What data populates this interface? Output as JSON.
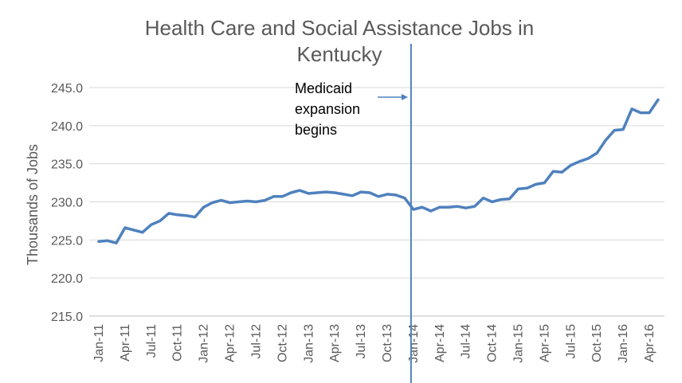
{
  "chart_data": {
    "type": "line",
    "title_line1": "Health Care and Social Assistance Jobs in",
    "title_line2": "Kentucky",
    "xlabel": "",
    "ylabel": "Thousands of Jobs",
    "ylim": [
      215,
      245
    ],
    "ytick_values": [
      215,
      220,
      225,
      230,
      235,
      240,
      245
    ],
    "yticks": [
      "215.0",
      "220.0",
      "225.0",
      "230.0",
      "235.0",
      "240.0",
      "245.0"
    ],
    "xtick_labels": [
      "Jan-11",
      "Apr-11",
      "Jul-11",
      "Oct-11",
      "Jan-12",
      "Apr-12",
      "Jul-12",
      "Oct-12",
      "Jan-13",
      "Apr-13",
      "Jul-13",
      "Oct-13",
      "Jan-14",
      "Apr-14",
      "Jul-14",
      "Oct-14",
      "Jan-15",
      "Apr-15",
      "Jul-15",
      "Oct-15",
      "Jan-16",
      "Apr-16"
    ],
    "grid": "horizontal",
    "legend": "none",
    "line_color": "#4f81bd",
    "series": [
      {
        "values": [
          224.8,
          224.9,
          224.6,
          226.6,
          226.3,
          226.0,
          227.0,
          227.5,
          228.5,
          228.3,
          228.2,
          228.0,
          229.3,
          229.9,
          230.2,
          229.9,
          230.0,
          230.1,
          230.0,
          230.2,
          230.7,
          230.7,
          231.2,
          231.5,
          231.1,
          231.2,
          231.3,
          231.2,
          231.0,
          230.8,
          231.3,
          231.2,
          230.7,
          231.0,
          230.9,
          230.5,
          229.0,
          229.3,
          228.8,
          229.3,
          229.3,
          229.4,
          229.2,
          229.4,
          230.5,
          230.0,
          230.3,
          230.4,
          231.7,
          231.8,
          232.3,
          232.5,
          234.0,
          233.9,
          234.8,
          235.3,
          235.7,
          236.4,
          238.1,
          239.4,
          239.5,
          242.2,
          241.7,
          241.7,
          243.4
        ]
      }
    ],
    "annotation": {
      "lines": [
        "Medicaid",
        "expansion",
        "begins"
      ],
      "marker_at": "Jan-14"
    }
  }
}
